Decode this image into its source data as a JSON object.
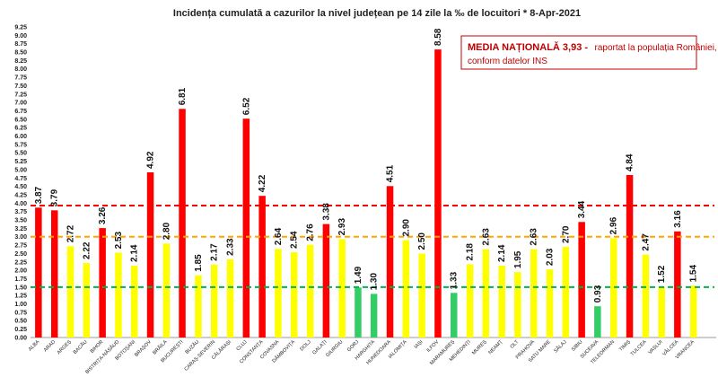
{
  "chart_data": {
    "type": "bar",
    "title": "Incidența cumulată a cazurilor la nivel județean pe 14 zile la ‰ de locuitori *   8-Apr-2021",
    "ylim": [
      0,
      9.25
    ],
    "ytick_step": 0.25,
    "grid": false,
    "categories": [
      "ALBA",
      "ARAD",
      "ARGEȘ",
      "BACĂU",
      "BIHOR",
      "BISTRIȚA-NĂSĂUD",
      "BOTOȘANI",
      "BRAȘOV",
      "BRĂILA",
      "BUCUREȘTI",
      "BUZĂU",
      "CARAȘ-SEVERIN",
      "CĂLĂRAȘI",
      "CLUJ",
      "CONSTANȚA",
      "COVASNA",
      "DÂMBOVIȚA",
      "DOLJ",
      "GALAȚI",
      "GIURGIU",
      "GORJ",
      "HARGHITA",
      "HUNEDOARA",
      "IALOMIȚA",
      "IAȘI",
      "ILFOV",
      "MARAMUREȘ",
      "MEHEDINȚI",
      "MUREȘ",
      "NEAMȚ",
      "OLT",
      "PRAHOVA",
      "SATU MARE",
      "SĂLAJ",
      "SIBIU",
      "SUCEAVA",
      "TELEORMAN",
      "TIMIȘ",
      "TULCEA",
      "VASLUI",
      "VÂLCEA",
      "VRANCEA"
    ],
    "values": [
      3.87,
      3.79,
      2.72,
      2.22,
      3.26,
      2.53,
      2.14,
      4.92,
      2.8,
      6.81,
      1.85,
      2.17,
      2.33,
      6.52,
      4.22,
      2.64,
      2.54,
      2.76,
      3.38,
      2.93,
      1.49,
      1.3,
      4.51,
      2.9,
      2.5,
      8.58,
      1.33,
      2.18,
      2.63,
      2.14,
      1.95,
      2.63,
      2.03,
      2.7,
      3.44,
      0.93,
      2.96,
      4.84,
      2.47,
      1.52,
      3.16,
      1.54
    ],
    "colors": {
      "red": "#ff0000",
      "yellow": "#ffff00",
      "green": "#33cc66"
    },
    "thresholds": [
      {
        "value": 3.93,
        "color": "#ff0000",
        "style": "dashed"
      },
      {
        "value": 3.0,
        "color": "#ffa500",
        "style": "dashed"
      },
      {
        "value": 1.5,
        "color": "#00b050",
        "style": "dashed"
      }
    ],
    "annotation": {
      "heading": "MEDIA NAȚIONALĂ  3,93 -",
      "text1": "raportat la populația României,",
      "text2": "conform datelor INS"
    }
  }
}
